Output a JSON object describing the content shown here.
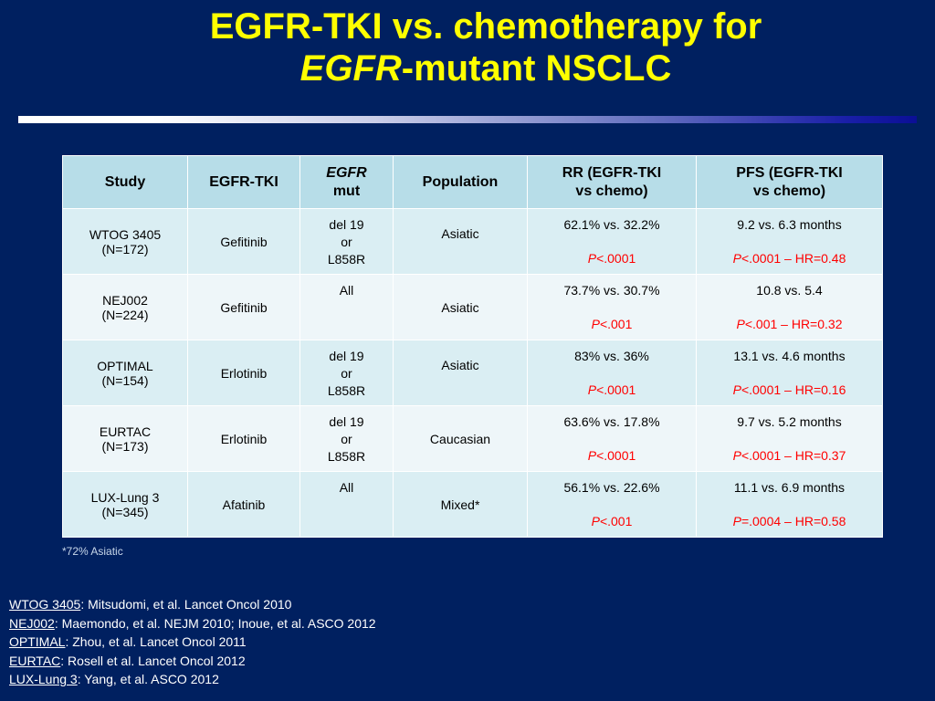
{
  "title": {
    "line1": "EGFR-TKI vs. chemotherapy for",
    "line2_italic": "EGFR",
    "line2_rest": "-mutant NSCLC"
  },
  "table": {
    "headers": {
      "study": "Study",
      "tki": "EGFR-TKI",
      "mut_italic": "EGFR",
      "mut_rest": "mut",
      "population": "Population",
      "rr_line1": "RR (EGFR-TKI",
      "rr_line2": "vs chemo)",
      "pfs_line1": "PFS (EGFR-TKI",
      "pfs_line2": "vs chemo)"
    },
    "rows": [
      {
        "study": "WTOG 3405",
        "n": "(N=172)",
        "tki": "Gefitinib",
        "mut": [
          "del 19",
          "or",
          "L858R"
        ],
        "population": "Asiatic",
        "rr": "62.1% vs. 32.2%",
        "rr_p_letter": "P",
        "rr_p_rest": "<.0001",
        "pfs": "9.2 vs. 6.3 months",
        "pfs_p_letter": "P",
        "pfs_p_rest": "<.0001 – HR=0.48"
      },
      {
        "study": "NEJ002",
        "n": "(N=224)",
        "tki": "Gefitinib",
        "mut": [
          "All"
        ],
        "population": "Asiatic",
        "rr": "73.7% vs. 30.7%",
        "rr_p_letter": "P",
        "rr_p_rest": "<.001",
        "pfs": "10.8 vs. 5.4",
        "pfs_p_letter": "P",
        "pfs_p_rest": "<.001 – HR=0.32"
      },
      {
        "study": "OPTIMAL",
        "n": "(N=154)",
        "tki": "Erlotinib",
        "mut": [
          "del 19",
          "or",
          "L858R"
        ],
        "population": "Asiatic",
        "rr": "83% vs. 36%",
        "rr_p_letter": "P",
        "rr_p_rest": "<.0001",
        "pfs": "13.1 vs. 4.6 months",
        "pfs_p_letter": "P",
        "pfs_p_rest": "<.0001 – HR=0.16"
      },
      {
        "study": "EURTAC",
        "n": "(N=173)",
        "tki": "Erlotinib",
        "mut": [
          "del 19",
          "or",
          "L858R"
        ],
        "population": "Caucasian",
        "rr": "63.6% vs. 17.8%",
        "rr_p_letter": "P",
        "rr_p_rest": "<.0001",
        "pfs": "9.7 vs. 5.2 months",
        "pfs_p_letter": "P",
        "pfs_p_rest": "<.0001 – HR=0.37"
      },
      {
        "study": "LUX-Lung 3",
        "n": "(N=345)",
        "tki": "Afatinib",
        "mut": [
          "All"
        ],
        "population": "Mixed*",
        "rr": "56.1% vs. 22.6%",
        "rr_p_letter": "P",
        "rr_p_rest": "<.001",
        "pfs": "11.1 vs. 6.9 months",
        "pfs_p_letter": "P",
        "pfs_p_rest": "=.0004 – HR=0.58"
      }
    ]
  },
  "footnote": "*72% Asiatic",
  "references": [
    {
      "key": "WTOG 3405",
      "text": ": Mitsudomi, et al. Lancet Oncol 2010"
    },
    {
      "key": "NEJ002",
      "text": ": Maemondo, et al. NEJM 2010; Inoue, et al. ASCO 2012"
    },
    {
      "key": "OPTIMAL",
      "text": ": Zhou, et al. Lancet Oncol 2011"
    },
    {
      "key": "EURTAC",
      "text": ": Rosell et al. Lancet Oncol 2012"
    },
    {
      "key": "LUX-Lung 3",
      "text": ": Yang, et al. ASCO 2012"
    }
  ],
  "colors": {
    "background": "#002060",
    "title": "#FFFF00",
    "header_fill": "#B7DDE8",
    "row_fill_a": "#DAEEF3",
    "row_fill_b": "#EEF6F9",
    "p_value": "#FF0000"
  }
}
